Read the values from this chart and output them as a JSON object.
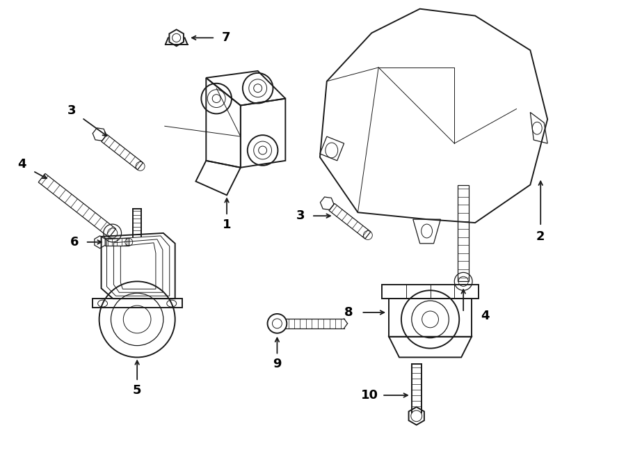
{
  "bg_color": "#ffffff",
  "line_color": "#1a1a1a",
  "text_color": "#000000",
  "fig_width": 9.0,
  "fig_height": 6.61,
  "dpi": 100
}
